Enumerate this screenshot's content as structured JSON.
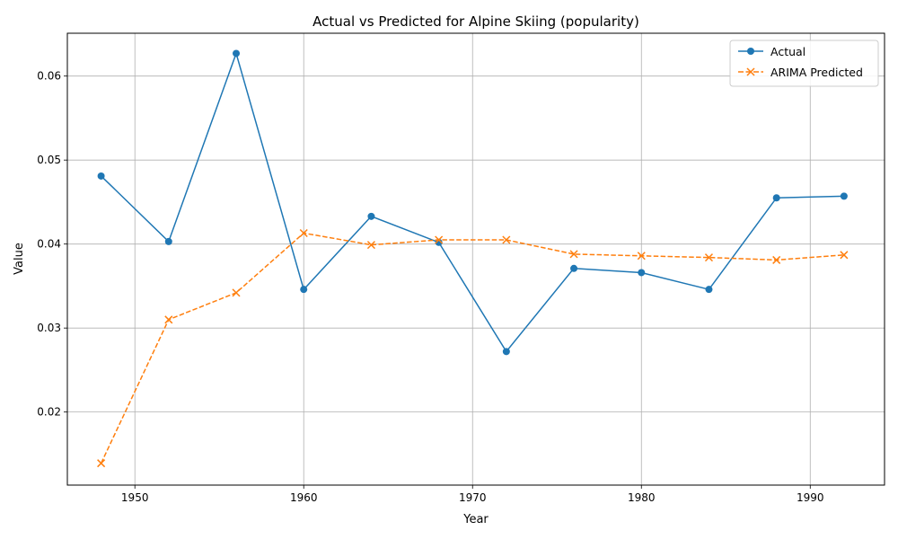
{
  "chart_data": {
    "type": "line",
    "title": "Actual vs Predicted for Alpine Skiing (popularity)",
    "xlabel": "Year",
    "ylabel": "Value",
    "x": [
      1948,
      1952,
      1956,
      1960,
      1964,
      1968,
      1972,
      1976,
      1980,
      1984,
      1988,
      1992
    ],
    "xlim": [
      1946,
      1994.4
    ],
    "ylim": [
      0.0113,
      0.0651
    ],
    "xticks": [
      1950,
      1960,
      1970,
      1980,
      1990
    ],
    "yticks": [
      0.02,
      0.03,
      0.04,
      0.05,
      0.06
    ],
    "ytick_labels": [
      "0.02",
      "0.03",
      "0.04",
      "0.05",
      "0.06"
    ],
    "grid": true,
    "legend_position": "top-right",
    "series": [
      {
        "name": "Actual",
        "color": "#1f77b4",
        "marker": "circle",
        "linestyle": "solid",
        "values": [
          0.0481,
          0.0403,
          0.0627,
          0.0346,
          0.0433,
          0.0402,
          0.0272,
          0.0371,
          0.0366,
          0.0346,
          0.0455,
          0.0457
        ]
      },
      {
        "name": "ARIMA Predicted",
        "color": "#ff7f0e",
        "marker": "x",
        "linestyle": "dashed",
        "values": [
          0.0139,
          0.031,
          0.0342,
          0.0413,
          0.0399,
          0.0405,
          0.0405,
          0.0388,
          0.0386,
          0.0384,
          0.0381,
          0.0387
        ]
      }
    ]
  }
}
